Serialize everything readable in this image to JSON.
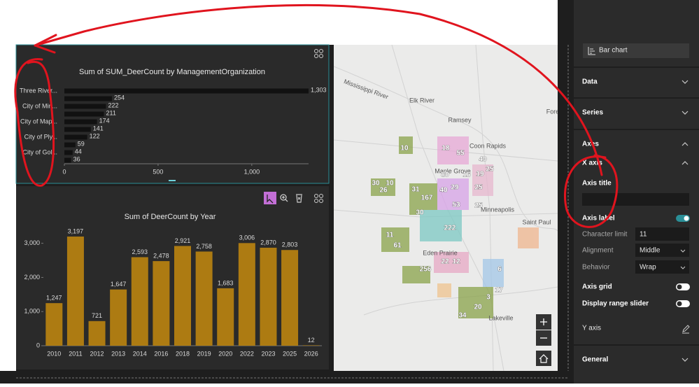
{
  "chart_data": [
    {
      "type": "bar",
      "orientation": "horizontal",
      "title": "Sum of SUM_DeerCount by ManagementOrganization",
      "categories": [
        "Three River...",
        null,
        "City of Min...",
        null,
        "City of Map...",
        null,
        "City of Ply...",
        null,
        "City of Gol...",
        null
      ],
      "values": [
        1303,
        254,
        222,
        211,
        174,
        141,
        122,
        59,
        44,
        36
      ],
      "value_labels": [
        "1,303",
        "254",
        "222",
        "211",
        "174",
        "141",
        "122",
        "59",
        "44",
        "36"
      ],
      "color": "#111111",
      "xlim": [
        0,
        1303
      ],
      "xticks": [
        0,
        500,
        {
          "value": 1000,
          "label": "1,000"
        }
      ]
    },
    {
      "type": "bar",
      "orientation": "vertical",
      "title": "Sum of DeerCount by Year",
      "categories": [
        "2010",
        "2011",
        "2012",
        "2013",
        "2014",
        "2016",
        "2018",
        "2019",
        "2020",
        "2022",
        "2023",
        "2025",
        "2026"
      ],
      "values": [
        1247,
        3197,
        721,
        1647,
        2593,
        2478,
        2921,
        2758,
        1683,
        3006,
        2870,
        2803,
        12
      ],
      "value_labels": [
        "1,247",
        "3,197",
        "721",
        "1,647",
        "2,593",
        "2,478",
        "2,921",
        "2,758",
        "1,683",
        "3,006",
        "2,870",
        "2,803",
        "12"
      ],
      "color": "#ad7b12",
      "ylim": [
        0,
        3300
      ],
      "yticks": [
        0,
        {
          "value": 1000,
          "label": "1,000"
        },
        {
          "value": 2000,
          "label": "2,000"
        },
        {
          "value": 3000,
          "label": "3,000"
        }
      ]
    }
  ],
  "map": {
    "places": [
      "Elk River",
      "Ramsey",
      "Coon Rapids",
      "Maple Grove",
      "Minneapolis",
      "Saint Paul",
      "Eden Prairie",
      "Lakeville",
      "Mississippi River",
      "Fore"
    ],
    "cluster_labels": [
      "10",
      "18",
      "55",
      "40",
      "80",
      "16",
      "19",
      "25",
      "30",
      "10",
      "26",
      "31",
      "167",
      "40",
      "29",
      "25",
      "53",
      "30",
      "25",
      "222",
      "11",
      "61",
      "22",
      "12",
      "256",
      "6",
      "17",
      "20",
      "34",
      "3"
    ]
  },
  "panel": {
    "chart_type": "Bar chart",
    "sections": [
      "Data",
      "Series",
      "Axes",
      "General"
    ],
    "x_axis": "X axis",
    "axis_title": "Axis title",
    "axis_label": {
      "text": "Axis label",
      "on": true
    },
    "character_limit": {
      "label": "Character limit",
      "value": "11"
    },
    "alignment": {
      "label": "Alignment",
      "value": "Middle"
    },
    "behavior": {
      "label": "Behavior",
      "value": "Wrap"
    },
    "axis_grid": {
      "text": "Axis grid",
      "on": false
    },
    "range_slider": {
      "text": "Display range slider",
      "on": false
    },
    "y_axis": "Y axis"
  }
}
